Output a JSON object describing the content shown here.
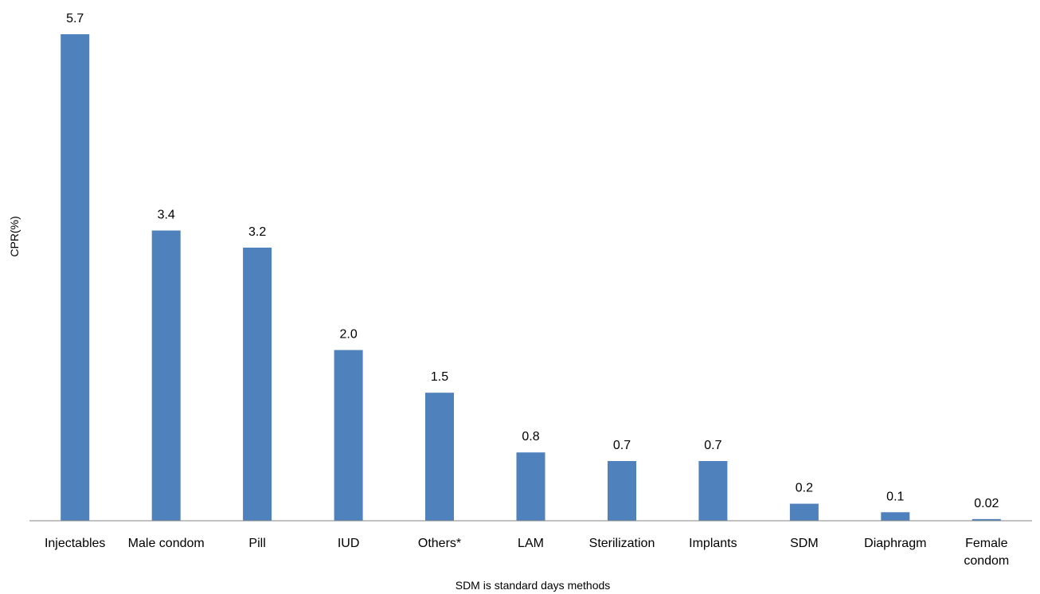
{
  "chart_data": {
    "type": "bar",
    "categories": [
      "Injectables",
      "Male condom",
      "Pill",
      "IUD",
      "Others*",
      "LAM",
      "Sterilization",
      "Implants",
      "SDM",
      "Diaphragm",
      "Female condom"
    ],
    "category_lines": [
      [
        "Injectables"
      ],
      [
        "Male condom"
      ],
      [
        "Pill"
      ],
      [
        "IUD"
      ],
      [
        "Others*"
      ],
      [
        "LAM"
      ],
      [
        "Sterilization"
      ],
      [
        "Implants"
      ],
      [
        "SDM"
      ],
      [
        "Diaphragm"
      ],
      [
        "Female",
        "condom"
      ]
    ],
    "values": [
      5.7,
      3.4,
      3.2,
      2.0,
      1.5,
      0.8,
      0.7,
      0.7,
      0.2,
      0.1,
      0.02
    ],
    "value_labels": [
      "5.7",
      "3.4",
      "3.2",
      "2.0",
      "1.5",
      "0.8",
      "0.7",
      "0.7",
      "0.2",
      "0.1",
      "0.02"
    ],
    "title": "",
    "xlabel": "SDM  is standard days methods",
    "ylabel": "CPR(%)",
    "ylim": [
      0,
      6
    ],
    "grid": false,
    "legend": "none",
    "bar_color": "#4F81BD",
    "axis_color": "#868686"
  }
}
